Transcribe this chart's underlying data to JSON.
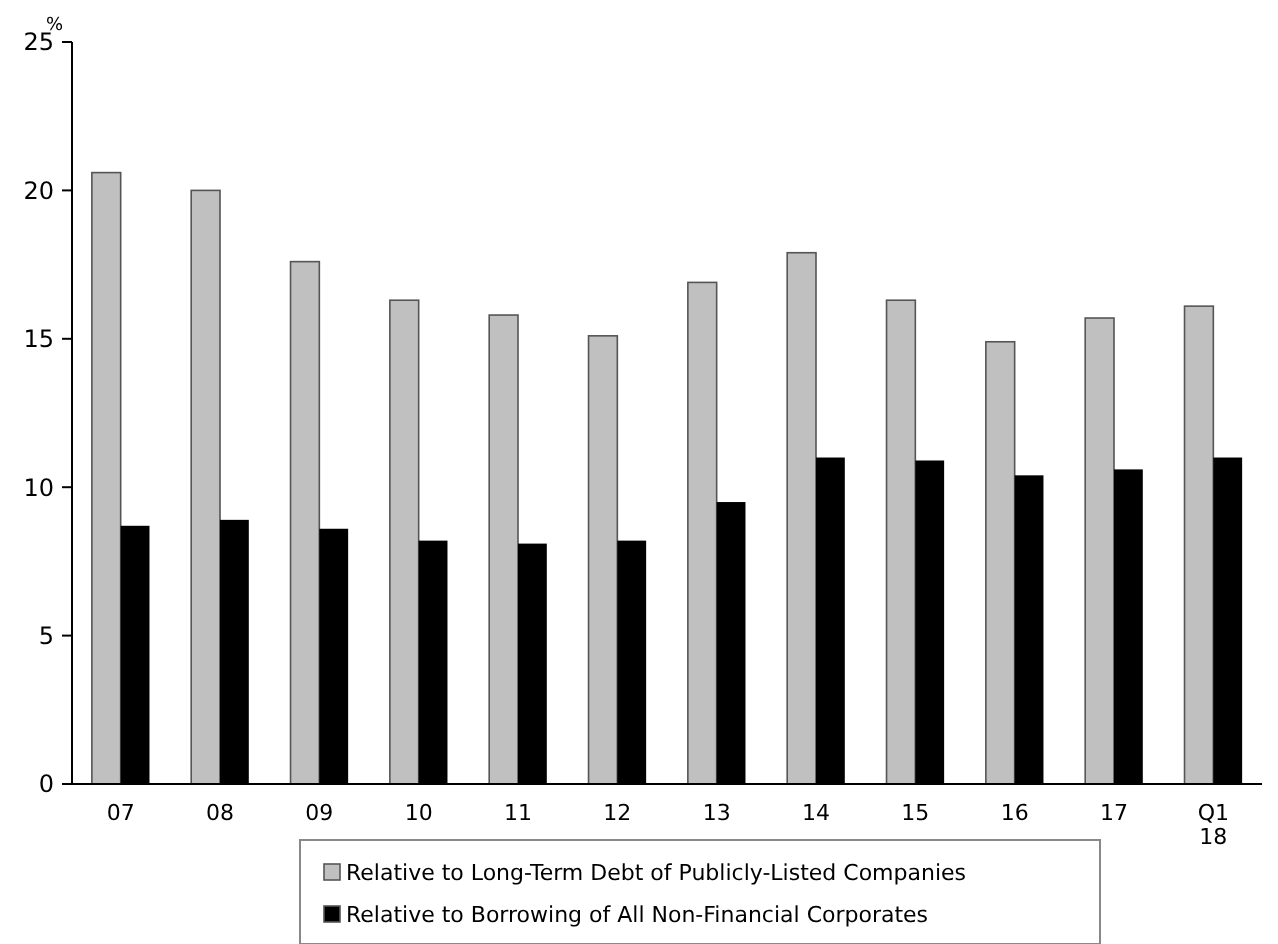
{
  "chart_data": {
    "type": "bar",
    "ylabel": "%",
    "categories": [
      "07",
      "08",
      "09",
      "10",
      "11",
      "12",
      "13",
      "14",
      "15",
      "16",
      "17",
      "Q1\n18"
    ],
    "series": [
      {
        "name": "Relative to Long-Term Debt of Publicly-Listed Companies",
        "color": "#c0c0c0",
        "values": [
          20.6,
          20.0,
          17.6,
          16.3,
          15.8,
          15.1,
          16.9,
          17.9,
          16.3,
          14.9,
          15.7,
          16.1
        ]
      },
      {
        "name": "Relative to Borrowing of All Non-Financial Corporates",
        "color": "#000000",
        "values": [
          8.7,
          8.9,
          8.6,
          8.2,
          8.1,
          8.2,
          9.5,
          11.0,
          10.9,
          10.4,
          10.6,
          11.0
        ]
      }
    ],
    "ylim": [
      0,
      25
    ],
    "yticks": [
      0,
      5,
      10,
      15,
      20,
      25
    ],
    "grid": false,
    "legend": "bottom"
  }
}
